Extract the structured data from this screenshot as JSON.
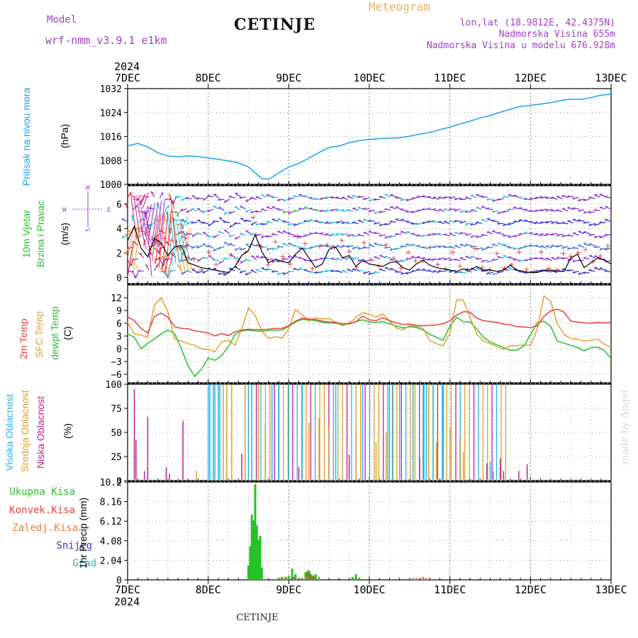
{
  "header": {
    "model_label": "Model",
    "model_name": "wrf-nmm_v3.9.1  e1km",
    "station": "CETINJE",
    "meteogram_label": "Meteogram",
    "coords": "lon,lat (18.9812E, 42.4375N)",
    "elevation": "Nadmorska Visina 655m",
    "model_elevation": "Nadmorska Visina u modelu 676.928m"
  },
  "footer": {
    "station": "CETINJE",
    "credit": "made by Angel"
  },
  "colors": {
    "pressure": "#1aa3e8",
    "t2m": "#e8413c",
    "tsfc": "#e0a030",
    "dewpt": "#22c22a",
    "high_cloud": "#29b3e6",
    "mid_cloud": "#dca028",
    "low_cloud": "#c21d8e",
    "total_precip": "#26c126",
    "conv_precip": "#e8413c",
    "frozen_precip": "#f08030",
    "snow": "#3636d0",
    "hail": "#22b8b8",
    "header_purple": "#a040c8",
    "meteogram_orange": "#e8b060"
  },
  "chart_data": {
    "x_axis": {
      "top_year": "2024",
      "bottom_year": "2024",
      "ticks": [
        "7DEC",
        "8DEC",
        "9DEC",
        "10DEC",
        "11DEC",
        "12DEC",
        "13DEC"
      ],
      "range_hours": [
        0,
        144
      ]
    },
    "panels": [
      {
        "id": "pressure",
        "type": "line",
        "ylabel": "(hPa)",
        "legend": [
          "Pritisak na nivou mora"
        ],
        "ylim": [
          1000,
          1032
        ],
        "yticks": [
          "1000",
          "1008",
          "1016",
          "1024",
          "1032"
        ],
        "x": [
          0,
          3,
          6,
          9,
          12,
          15,
          18,
          21,
          24,
          27,
          30,
          33,
          36,
          38,
          40,
          42,
          45,
          48,
          51,
          54,
          57,
          60,
          63,
          66,
          69,
          72,
          75,
          78,
          81,
          84,
          87,
          90,
          93,
          96,
          99,
          102,
          105,
          108,
          111,
          114,
          117,
          120,
          123,
          126,
          129,
          132,
          135,
          138,
          141,
          144
        ],
        "values": [
          1012.8,
          1013.7,
          1012.5,
          1010.6,
          1009.5,
          1009.2,
          1009.5,
          1009.3,
          1008.8,
          1008.4,
          1007.8,
          1007.2,
          1005.8,
          1003.8,
          1001.9,
          1001.7,
          1003.8,
          1005.8,
          1007.0,
          1008.8,
          1010.6,
          1012.3,
          1012.8,
          1013.9,
          1014.6,
          1015.0,
          1015.3,
          1015.4,
          1015.6,
          1016.1,
          1016.8,
          1017.3,
          1018.3,
          1019.1,
          1020.2,
          1021.1,
          1022.2,
          1023.0,
          1024.1,
          1025.1,
          1026.0,
          1026.4,
          1026.8,
          1027.3,
          1028.0,
          1028.5,
          1028.4,
          1029.0,
          1029.8,
          1030.1
        ]
      },
      {
        "id": "wind",
        "type": "line",
        "ylabel": "(m/s)",
        "legend": [
          "10m Vjetar",
          "Brzina i Pravac"
        ],
        "compass_labels": [
          "W",
          "E",
          "N",
          "S"
        ],
        "ylim": [
          -0.5,
          7.5
        ],
        "yticks": [
          "0",
          "2",
          "4",
          "6"
        ],
        "x": [
          0,
          2,
          4,
          6,
          8,
          10,
          12,
          14,
          16,
          18,
          20,
          22,
          24,
          26,
          28,
          30,
          32,
          34,
          36,
          38,
          40,
          42,
          44,
          46,
          48,
          50,
          52,
          54,
          56,
          58,
          60,
          62,
          64,
          66,
          68,
          70,
          72,
          74,
          76,
          78,
          80,
          82,
          84,
          86,
          88,
          90,
          92,
          94,
          96,
          98,
          100,
          102,
          104,
          106,
          108,
          110,
          112,
          114,
          116,
          118,
          120,
          122,
          124,
          126,
          128,
          130,
          132,
          134,
          136,
          138,
          140,
          142,
          144
        ],
        "speed": [
          3.0,
          4.2,
          2.4,
          1.7,
          3.2,
          2.8,
          1.8,
          2.5,
          2.6,
          1.2,
          1.0,
          0.8,
          0.7,
          0.6,
          0.5,
          0.4,
          0.9,
          1.8,
          2.2,
          3.5,
          2.1,
          1.2,
          1.5,
          1.3,
          1.2,
          1.9,
          2.4,
          1.6,
          0.8,
          1.1,
          2.3,
          2.5,
          1.6,
          1.8,
          0.9,
          1.4,
          1.1,
          1.0,
          0.9,
          1.2,
          1.3,
          0.8,
          0.6,
          1.1,
          1.4,
          1.0,
          0.8,
          0.7,
          0.6,
          0.5,
          0.7,
          0.6,
          0.9,
          0.6,
          0.6,
          0.5,
          0.6,
          1.0,
          0.6,
          0.5,
          0.4,
          0.4,
          0.6,
          0.6,
          0.5,
          0.5,
          1.6,
          1.9,
          0.8,
          1.2,
          1.6,
          1.4,
          1.1
        ]
      },
      {
        "id": "temperature",
        "type": "line",
        "ylabel": "(C)",
        "legend": [
          "2m Temp",
          "SFC Temp",
          "dewpt Temp"
        ],
        "ylim": [
          -8,
          15
        ],
        "yticks": [
          "−6",
          "−3",
          "0",
          "3",
          "6",
          "9",
          "12"
        ],
        "x": [
          0,
          2,
          4,
          6,
          8,
          10,
          12,
          14,
          16,
          18,
          20,
          22,
          24,
          26,
          28,
          30,
          32,
          34,
          36,
          38,
          40,
          42,
          44,
          46,
          48,
          50,
          52,
          54,
          56,
          58,
          60,
          62,
          64,
          66,
          68,
          70,
          72,
          74,
          76,
          78,
          80,
          82,
          84,
          86,
          88,
          90,
          92,
          94,
          96,
          98,
          100,
          102,
          104,
          106,
          108,
          110,
          112,
          114,
          116,
          118,
          120,
          122,
          124,
          126,
          128,
          130,
          132,
          134,
          136,
          138,
          140,
          142,
          144
        ],
        "t2m": [
          7.5,
          6.6,
          4.8,
          3.7,
          7.6,
          8.4,
          7.4,
          5.2,
          4.8,
          4.7,
          4.2,
          4.0,
          3.7,
          3.0,
          3.6,
          3.1,
          4.0,
          4.4,
          4.6,
          4.5,
          4.5,
          4.6,
          4.8,
          4.8,
          5.4,
          6.5,
          7.2,
          7.0,
          6.9,
          6.5,
          6.3,
          6.2,
          5.9,
          6.0,
          6.3,
          7.7,
          6.8,
          6.6,
          7.3,
          6.6,
          6.1,
          5.7,
          5.8,
          5.5,
          5.4,
          5.5,
          5.6,
          5.9,
          6.6,
          7.9,
          8.7,
          8.6,
          7.2,
          6.6,
          6.4,
          6.2,
          5.8,
          5.6,
          5.2,
          5.1,
          5.0,
          5.4,
          7.6,
          8.9,
          9.3,
          8.6,
          6.5,
          6.3,
          6.1,
          6.0,
          6.2,
          6.1,
          6.2
        ],
        "tsfc": [
          6.3,
          3.5,
          3.2,
          2.7,
          10.3,
          12.0,
          8.7,
          2.3,
          1.8,
          1.2,
          0.8,
          0.0,
          -0.2,
          -0.7,
          1.6,
          2.0,
          0.8,
          4.7,
          9.6,
          7.8,
          4.2,
          2.4,
          2.8,
          2.5,
          4.7,
          9.2,
          8.0,
          6.5,
          7.3,
          7.0,
          7.1,
          6.2,
          5.4,
          5.9,
          7.4,
          8.5,
          8.1,
          7.4,
          8.2,
          6.6,
          4.9,
          4.4,
          5.5,
          5.3,
          4.8,
          1.9,
          1.2,
          0.7,
          3.7,
          11.5,
          11.4,
          7.4,
          3.4,
          1.8,
          1.2,
          0.5,
          -0.2,
          0.7,
          0.7,
          0.9,
          0.8,
          4.6,
          12.4,
          11.2,
          5.9,
          3.4,
          2.4,
          2.3,
          1.8,
          2.0,
          2.3,
          1.1,
          0.3
        ],
        "dewpt": [
          3.5,
          2.7,
          0.0,
          1.3,
          2.3,
          3.5,
          4.4,
          3.6,
          0.0,
          -4.0,
          -6.5,
          -4.8,
          -2.2,
          -2.7,
          -1.6,
          0.5,
          3.4,
          4.2,
          4.4,
          4.2,
          4.1,
          4.3,
          4.4,
          4.4,
          5.3,
          6.3,
          6.9,
          6.8,
          6.6,
          6.2,
          6.1,
          6.0,
          5.6,
          5.8,
          6.4,
          6.8,
          6.3,
          6.2,
          6.4,
          5.9,
          5.4,
          4.9,
          5.2,
          5.0,
          4.4,
          3.4,
          2.7,
          2.0,
          5.3,
          7.4,
          6.4,
          6.3,
          4.6,
          2.7,
          1.6,
          0.9,
          0.3,
          -0.4,
          -0.3,
          0.6,
          3.3,
          6.1,
          6.5,
          5.3,
          1.8,
          1.3,
          0.8,
          0.3,
          -0.5,
          0.3,
          0.4,
          -0.4,
          -2.3
        ]
      },
      {
        "id": "cloud",
        "type": "bar",
        "ylabel": "(%)",
        "legend": [
          "Visoka Oblacnost",
          "Srednja Oblacnost",
          "Niska Oblacnost"
        ],
        "ylim": [
          0,
          100
        ],
        "yticks": [
          "0",
          "25",
          "50",
          "75",
          "100"
        ],
        "low_bars": [
          [
            2,
            95
          ],
          [
            2.5,
            42
          ],
          [
            5,
            10
          ],
          [
            6,
            66
          ],
          [
            11.5,
            14
          ],
          [
            12.5,
            7
          ],
          [
            16.5,
            62
          ],
          [
            34,
            28
          ],
          [
            51,
            14
          ],
          [
            66,
            27
          ],
          [
            87,
            24
          ],
          [
            107,
            18
          ],
          [
            111,
            23
          ],
          [
            112,
            10
          ],
          [
            116.5,
            10
          ],
          [
            119,
            17
          ]
        ],
        "mid_bars": [
          [
            20.5,
            10
          ],
          [
            28.5,
            100
          ],
          [
            29.5,
            100
          ],
          [
            31,
            100
          ],
          [
            35,
            100
          ],
          [
            39,
            100
          ],
          [
            41,
            60
          ],
          [
            54,
            60
          ],
          [
            57,
            65
          ],
          [
            60,
            55
          ],
          [
            68,
            55
          ],
          [
            74,
            40
          ],
          [
            77,
            50
          ],
          [
            92,
            40
          ],
          [
            96,
            55
          ],
          [
            99,
            45
          ],
          [
            100,
            30
          ]
        ],
        "high_bars": [
          [
            24,
            100
          ],
          [
            24.5,
            100
          ],
          [
            25.5,
            100
          ],
          [
            26,
            100
          ],
          [
            27,
            100
          ],
          [
            27.5,
            100
          ],
          [
            36,
            100
          ],
          [
            37,
            100
          ],
          [
            43,
            100
          ],
          [
            45,
            100
          ],
          [
            48,
            100
          ],
          [
            52,
            100
          ],
          [
            62,
            100
          ],
          [
            70,
            100
          ],
          [
            78,
            100
          ],
          [
            79,
            100
          ],
          [
            81,
            100
          ],
          [
            85,
            100
          ],
          [
            88,
            100
          ],
          [
            89,
            100
          ],
          [
            91,
            100
          ],
          [
            94,
            100
          ],
          [
            108,
            20
          ],
          [
            109,
            10
          ]
        ],
        "band_start": 37,
        "band_end": 113,
        "band_step": 1.35
      },
      {
        "id": "precip",
        "type": "bar",
        "ylabel": "1hr Precip (mm)",
        "legend": [
          "Ukupna Kisa",
          "Konvek.Kisa",
          "Zaledj.Kisa",
          "Snijeg",
          "Grad"
        ],
        "ylim": [
          0,
          10.2
        ],
        "yticks": [
          "0",
          "2.04",
          "4.08",
          "6.12",
          "8.16",
          "10.2"
        ],
        "total": [
          [
            36,
            1.5
          ],
          [
            36.5,
            3.5
          ],
          [
            37,
            6.8
          ],
          [
            37.5,
            6.2
          ],
          [
            38,
            10.0
          ],
          [
            38.5,
            5.7
          ],
          [
            39,
            4.2
          ],
          [
            39.5,
            4.6
          ],
          [
            40,
            1.3
          ],
          [
            45,
            0.2
          ],
          [
            46,
            0.3
          ],
          [
            47,
            0.3
          ],
          [
            48,
            0.4
          ],
          [
            49,
            1.2
          ],
          [
            50,
            0.6
          ],
          [
            52,
            0.2
          ],
          [
            53,
            0.8
          ],
          [
            54,
            1.0
          ],
          [
            55,
            0.5
          ],
          [
            56,
            0.6
          ],
          [
            57,
            0.3
          ],
          [
            67,
            0.3
          ],
          [
            68,
            0.6
          ],
          [
            69,
            0.2
          ],
          [
            70,
            0.1
          ]
        ],
        "convective": [
          [
            45.2,
            0.1
          ],
          [
            48.8,
            0.2
          ],
          [
            53.4,
            0.1
          ],
          [
            67.4,
            0.1
          ]
        ],
        "frozen": [
          [
            45.5,
            0.2
          ],
          [
            47.5,
            0.2
          ],
          [
            53.2,
            0.3
          ],
          [
            85,
            0.2
          ],
          [
            86,
            0.2
          ],
          [
            88,
            0.3
          ],
          [
            89,
            0.2
          ]
        ],
        "frozen_olive": [
          [
            49.5,
            0.3
          ],
          [
            53.6,
            0.9
          ],
          [
            54.4,
            0.7
          ],
          [
            55.4,
            0.4
          ]
        ]
      }
    ]
  }
}
